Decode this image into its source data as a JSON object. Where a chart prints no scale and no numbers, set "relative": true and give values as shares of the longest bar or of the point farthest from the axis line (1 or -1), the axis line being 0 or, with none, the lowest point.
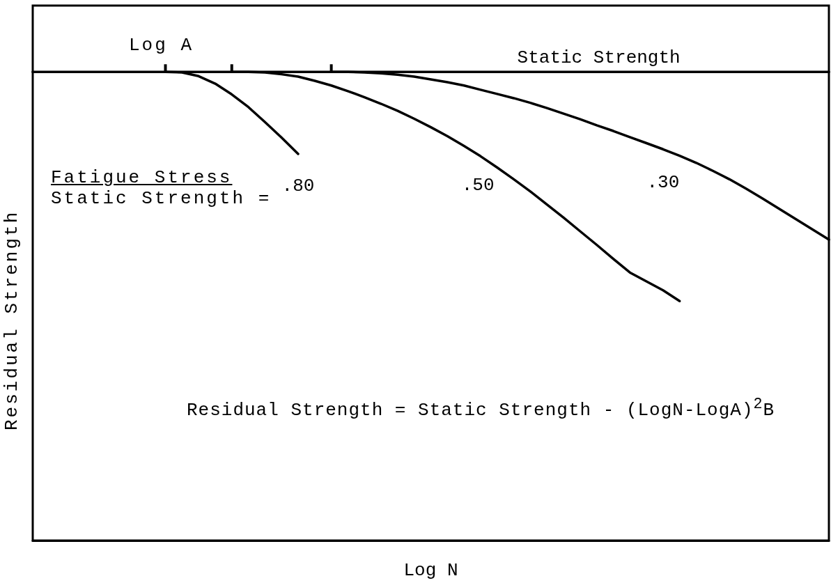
{
  "chart_data": {
    "type": "line",
    "relative": true,
    "marker": "none",
    "line_style": "solid",
    "xlabel": "Log N",
    "ylabel": "Residual Strength",
    "annotations": [
      "Log A",
      "Fatigue Stress",
      "Static Strength =",
      "Residual Strength = Static Strength - (LogN-LogA)$^{2}$B"
    ],
    "categories": [
      null,
      null,
      null,
      null,
      null,
      null,
      null,
      null,
      null,
      null,
      null,
      null,
      null,
      null,
      null,
      null,
      null,
      null,
      null,
      null,
      null,
      null,
      null,
      null,
      null,
      null,
      null,
      null,
      null,
      null,
      null,
      null,
      null,
      null,
      null,
      null,
      null,
      null,
      null,
      null,
      null,
      null,
      null,
      null,
      null,
      null,
      null,
      null,
      null
    ],
    "series": [
      {
        "name": "Static Strength",
        "color": "#000000",
        "values": [
          1,
          1,
          1,
          1,
          1,
          1,
          1,
          1,
          1,
          1,
          1,
          1,
          1,
          1,
          1,
          1,
          1,
          1,
          1,
          1,
          1,
          1,
          1,
          1,
          1,
          1,
          1,
          1,
          1,
          1,
          1,
          1,
          1,
          1,
          1,
          1,
          1,
          1,
          1,
          1,
          1,
          1,
          1,
          1,
          1,
          1,
          1,
          1,
          1
        ]
      },
      {
        "name": ".80",
        "color": "#000000",
        "values": [
          null,
          null,
          null,
          null,
          null,
          null,
          null,
          null,
          1,
          0.999,
          0.991,
          0.975,
          0.952,
          0.925,
          0.893,
          0.86,
          0.825,
          null,
          null,
          null,
          null,
          null,
          null,
          null,
          null,
          null,
          null,
          null,
          null,
          null,
          null,
          null,
          null,
          null,
          null,
          null,
          null,
          null,
          null,
          null,
          null,
          null,
          null,
          null,
          null,
          null,
          null,
          null,
          null
        ]
      },
      {
        "name": ".50",
        "color": "#000000",
        "values": [
          null,
          null,
          null,
          null,
          null,
          null,
          null,
          null,
          null,
          null,
          null,
          null,
          1,
          1,
          0.999,
          0.995,
          0.99,
          0.981,
          0.971,
          0.959,
          0.946,
          0.932,
          0.917,
          0.9,
          0.882,
          0.863,
          0.842,
          0.82,
          0.796,
          0.771,
          0.745,
          0.717,
          0.689,
          0.66,
          0.631,
          0.601,
          0.572,
          0.553,
          0.534,
          0.511,
          null,
          null,
          null,
          null,
          null,
          null,
          null,
          null,
          null
        ]
      },
      {
        "name": ".30",
        "color": "#000000",
        "values": [
          null,
          null,
          null,
          null,
          null,
          null,
          null,
          null,
          null,
          null,
          null,
          null,
          null,
          null,
          null,
          null,
          null,
          null,
          1,
          1,
          0.999,
          0.997,
          0.994,
          0.99,
          0.984,
          0.978,
          0.971,
          0.962,
          0.953,
          0.944,
          0.934,
          0.923,
          0.911,
          0.899,
          0.886,
          0.874,
          0.861,
          0.848,
          0.835,
          0.821,
          0.806,
          0.789,
          0.771,
          0.751,
          0.73,
          0.708,
          0.686,
          0.664,
          0.642
        ]
      }
    ]
  }
}
